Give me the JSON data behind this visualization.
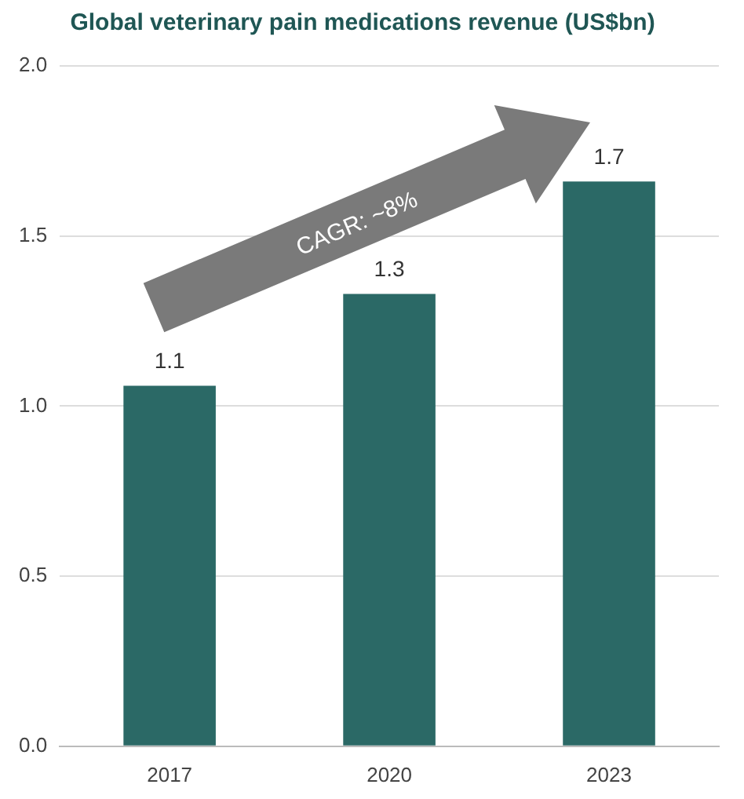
{
  "chart_data": {
    "type": "bar",
    "title": "Global veterinary pain medications revenue (US$bn)",
    "categories": [
      "2017",
      "2020",
      "2023"
    ],
    "values": [
      1.06,
      1.33,
      1.66
    ],
    "color": "#2b6966",
    "value_labels": [
      "1.1",
      "1.3",
      "1.7"
    ],
    "ylim": [
      0,
      2
    ],
    "yticks": [
      {
        "value": 0,
        "label": "0.0"
      },
      {
        "value": 0.5,
        "label": "0.5"
      },
      {
        "value": 1,
        "label": "1.0"
      },
      {
        "value": 1.5,
        "label": "1.5"
      },
      {
        "value": 2,
        "label": "2.0"
      }
    ],
    "grid": "y",
    "annotations": [
      "CAGR: ~8%"
    ]
  }
}
